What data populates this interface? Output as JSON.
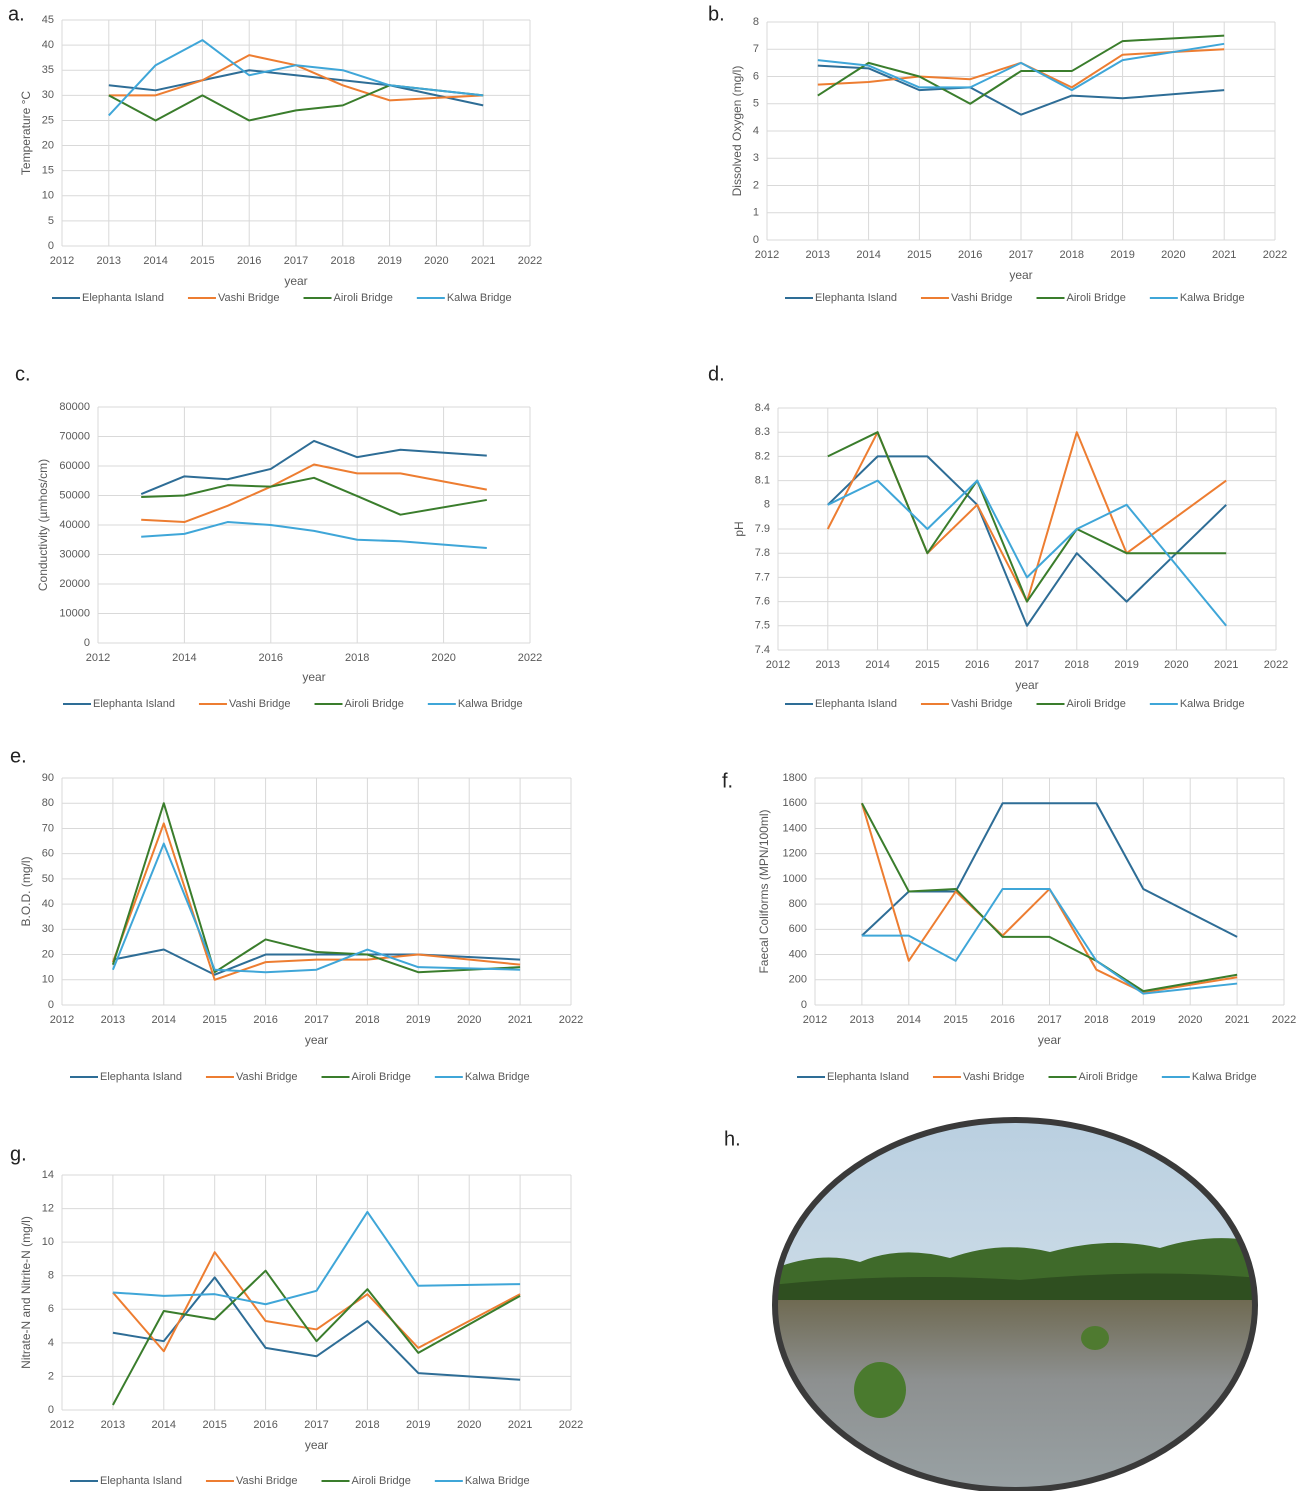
{
  "chart_data": [
    {
      "type": "line",
      "panel_label": "a.",
      "ylabel": "Temperature °C",
      "xlabel": "year",
      "x": [
        2013,
        2014,
        2015,
        2016,
        2017,
        2018,
        2019,
        2021
      ],
      "xlim": [
        2012,
        2022
      ],
      "xticks": [
        2012,
        2013,
        2014,
        2015,
        2016,
        2017,
        2018,
        2019,
        2020,
        2021,
        2022
      ],
      "ylim": [
        0,
        45
      ],
      "yticks": [
        0,
        5,
        10,
        15,
        20,
        25,
        30,
        35,
        40,
        45
      ],
      "grid": true,
      "series": [
        {
          "name": "Elephanta Island",
          "color": "#2e6d96",
          "values": [
            32,
            31,
            33,
            35,
            34,
            33,
            32,
            28
          ]
        },
        {
          "name": "Vashi Bridge",
          "color": "#ed7d31",
          "values": [
            30,
            30,
            33,
            38,
            36,
            32,
            29,
            30
          ]
        },
        {
          "name": "Airoli Bridge",
          "color": "#3a7d2c",
          "values": [
            30,
            25,
            30,
            25,
            27,
            28,
            32,
            30
          ]
        },
        {
          "name": "Kalwa Bridge",
          "color": "#3fa6d8",
          "values": [
            26,
            36,
            41,
            34,
            36,
            35,
            32,
            30
          ]
        }
      ]
    },
    {
      "type": "line",
      "panel_label": "b.",
      "ylabel": "Dissolved Oxygen (mg/l)",
      "xlabel": "year",
      "x": [
        2013,
        2014,
        2015,
        2016,
        2017,
        2018,
        2019,
        2021
      ],
      "xlim": [
        2012,
        2022
      ],
      "xticks": [
        2012,
        2013,
        2014,
        2015,
        2016,
        2017,
        2018,
        2019,
        2020,
        2021,
        2022
      ],
      "ylim": [
        0,
        8
      ],
      "yticks": [
        0,
        1,
        2,
        3,
        4,
        5,
        6,
        7,
        8
      ],
      "grid": true,
      "series": [
        {
          "name": "Elephanta Island",
          "color": "#2e6d96",
          "values": [
            6.4,
            6.3,
            5.5,
            5.6,
            4.6,
            5.3,
            5.2,
            5.5
          ]
        },
        {
          "name": "Vashi Bridge",
          "color": "#ed7d31",
          "values": [
            5.7,
            5.8,
            6.0,
            5.9,
            6.5,
            5.6,
            6.8,
            7.0
          ]
        },
        {
          "name": "Airoli Bridge",
          "color": "#3a7d2c",
          "values": [
            5.3,
            6.5,
            6.0,
            5.0,
            6.2,
            6.2,
            7.3,
            7.5
          ]
        },
        {
          "name": "Kalwa Bridge",
          "color": "#3fa6d8",
          "values": [
            6.6,
            6.4,
            5.6,
            5.6,
            6.5,
            5.5,
            6.6,
            7.2
          ]
        }
      ]
    },
    {
      "type": "line",
      "panel_label": "c.",
      "ylabel": "Conductivity (µmhos/cm)",
      "xlabel": "year",
      "x": [
        2013,
        2014,
        2015,
        2016,
        2017,
        2018,
        2019,
        2021
      ],
      "xlim": [
        2012,
        2022
      ],
      "xticks": [
        2012,
        2014,
        2016,
        2018,
        2020,
        2022
      ],
      "ylim": [
        0,
        80000
      ],
      "yticks": [
        0,
        10000,
        20000,
        30000,
        40000,
        50000,
        60000,
        70000,
        80000
      ],
      "grid": true,
      "series": [
        {
          "name": "Elephanta Island",
          "color": "#2e6d96",
          "values": [
            50500,
            56500,
            55500,
            59000,
            68500,
            63000,
            65500,
            63500
          ]
        },
        {
          "name": "Vashi Bridge",
          "color": "#ed7d31",
          "values": [
            41800,
            41000,
            46500,
            53000,
            60500,
            57500,
            57500,
            52000
          ]
        },
        {
          "name": "Airoli Bridge",
          "color": "#3a7d2c",
          "values": [
            49500,
            50000,
            53500,
            53000,
            56000,
            49800,
            43500,
            48500
          ]
        },
        {
          "name": "Kalwa Bridge",
          "color": "#3fa6d8",
          "values": [
            36000,
            37000,
            41000,
            40000,
            38000,
            35000,
            34500,
            32200
          ]
        }
      ]
    },
    {
      "type": "line",
      "panel_label": "d.",
      "ylabel": "pH",
      "xlabel": "year",
      "x": [
        2013,
        2014,
        2015,
        2016,
        2017,
        2018,
        2019,
        2021
      ],
      "xlim": [
        2012,
        2022
      ],
      "xticks": [
        2012,
        2013,
        2014,
        2015,
        2016,
        2017,
        2018,
        2019,
        2020,
        2021,
        2022
      ],
      "ylim": [
        7.4,
        8.4
      ],
      "yticks": [
        7.4,
        7.5,
        7.6,
        7.7,
        7.8,
        7.9,
        8,
        8.1,
        8.2,
        8.3,
        8.4
      ],
      "grid": true,
      "series": [
        {
          "name": "Elephanta Island",
          "color": "#2e6d96",
          "values": [
            8.0,
            8.2,
            8.2,
            8.0,
            7.5,
            7.8,
            7.6,
            8.0
          ]
        },
        {
          "name": "Vashi Bridge",
          "color": "#ed7d31",
          "values": [
            7.9,
            8.3,
            7.8,
            8.0,
            7.6,
            8.3,
            7.8,
            8.1
          ]
        },
        {
          "name": "Airoli Bridge",
          "color": "#3a7d2c",
          "values": [
            8.2,
            8.3,
            7.8,
            8.1,
            7.6,
            7.9,
            7.8,
            7.8
          ]
        },
        {
          "name": "Kalwa Bridge",
          "color": "#3fa6d8",
          "values": [
            8.0,
            8.1,
            7.9,
            8.1,
            7.7,
            7.9,
            8.0,
            7.5
          ]
        }
      ]
    },
    {
      "type": "line",
      "panel_label": "e.",
      "ylabel": "B.O.D. (mg/l)",
      "xlabel": "year",
      "x": [
        2013,
        2014,
        2015,
        2016,
        2017,
        2018,
        2019,
        2021
      ],
      "xlim": [
        2012,
        2022
      ],
      "xticks": [
        2012,
        2013,
        2014,
        2015,
        2016,
        2017,
        2018,
        2019,
        2020,
        2021,
        2022
      ],
      "ylim": [
        0,
        90
      ],
      "yticks": [
        0,
        10,
        20,
        30,
        40,
        50,
        60,
        70,
        80,
        90
      ],
      "grid": true,
      "series": [
        {
          "name": "Elephanta Island",
          "color": "#2e6d96",
          "values": [
            18,
            22,
            12,
            20,
            20,
            20,
            20,
            18
          ]
        },
        {
          "name": "Vashi Bridge",
          "color": "#ed7d31",
          "values": [
            17,
            72,
            10,
            17,
            18,
            18,
            20,
            16
          ]
        },
        {
          "name": "Airoli Bridge",
          "color": "#3a7d2c",
          "values": [
            16,
            80,
            13,
            26,
            21,
            20,
            13,
            15
          ]
        },
        {
          "name": "Kalwa Bridge",
          "color": "#3fa6d8",
          "values": [
            14,
            64,
            14,
            13,
            14,
            22,
            15,
            14
          ]
        }
      ]
    },
    {
      "type": "line",
      "panel_label": "f.",
      "ylabel": "Faecal Coliforms (MPN/100ml)",
      "xlabel": "year",
      "x": [
        2013,
        2014,
        2015,
        2016,
        2017,
        2018,
        2019,
        2021
      ],
      "xlim": [
        2012,
        2022
      ],
      "xticks": [
        2012,
        2013,
        2014,
        2015,
        2016,
        2017,
        2018,
        2019,
        2020,
        2021,
        2022
      ],
      "ylim": [
        0,
        1800
      ],
      "yticks": [
        0,
        200,
        400,
        600,
        800,
        1000,
        1200,
        1400,
        1600,
        1800
      ],
      "grid": true,
      "series": [
        {
          "name": "Elephanta Island",
          "color": "#2e6d96",
          "values": [
            550,
            900,
            900,
            1600,
            1600,
            1600,
            920,
            540
          ]
        },
        {
          "name": "Vashi Bridge",
          "color": "#ed7d31",
          "values": [
            1600,
            350,
            900,
            550,
            920,
            280,
            100,
            220
          ]
        },
        {
          "name": "Airoli Bridge",
          "color": "#3a7d2c",
          "values": [
            1600,
            900,
            920,
            540,
            540,
            350,
            110,
            240
          ]
        },
        {
          "name": "Kalwa Bridge",
          "color": "#3fa6d8",
          "values": [
            550,
            550,
            350,
            920,
            920,
            350,
            90,
            170
          ]
        }
      ]
    },
    {
      "type": "line",
      "panel_label": "g.",
      "ylabel": "Nitrate-N and Nitrite-N (mg/l)",
      "xlabel": "year",
      "x": [
        2013,
        2014,
        2015,
        2016,
        2017,
        2018,
        2019,
        2021
      ],
      "xlim": [
        2012,
        2022
      ],
      "xticks": [
        2012,
        2013,
        2014,
        2015,
        2016,
        2017,
        2018,
        2019,
        2020,
        2021,
        2022
      ],
      "ylim": [
        0,
        14
      ],
      "yticks": [
        0,
        2,
        4,
        6,
        8,
        10,
        12,
        14
      ],
      "grid": true,
      "series": [
        {
          "name": "Elephanta Island",
          "color": "#2e6d96",
          "values": [
            4.6,
            4.1,
            7.9,
            3.7,
            3.2,
            5.3,
            2.2,
            1.8
          ]
        },
        {
          "name": "Vashi Bridge",
          "color": "#ed7d31",
          "values": [
            7.0,
            3.5,
            9.4,
            5.3,
            4.8,
            6.9,
            3.7,
            6.9
          ]
        },
        {
          "name": "Airoli Bridge",
          "color": "#3a7d2c",
          "values": [
            0.3,
            5.9,
            5.4,
            8.3,
            4.1,
            7.2,
            3.4,
            6.8
          ]
        },
        {
          "name": "Kalwa Bridge",
          "color": "#3fa6d8",
          "values": [
            7.0,
            6.8,
            6.9,
            6.3,
            7.1,
            11.8,
            7.4,
            7.5
          ]
        }
      ]
    }
  ],
  "photo": {
    "panel_label": "h."
  }
}
